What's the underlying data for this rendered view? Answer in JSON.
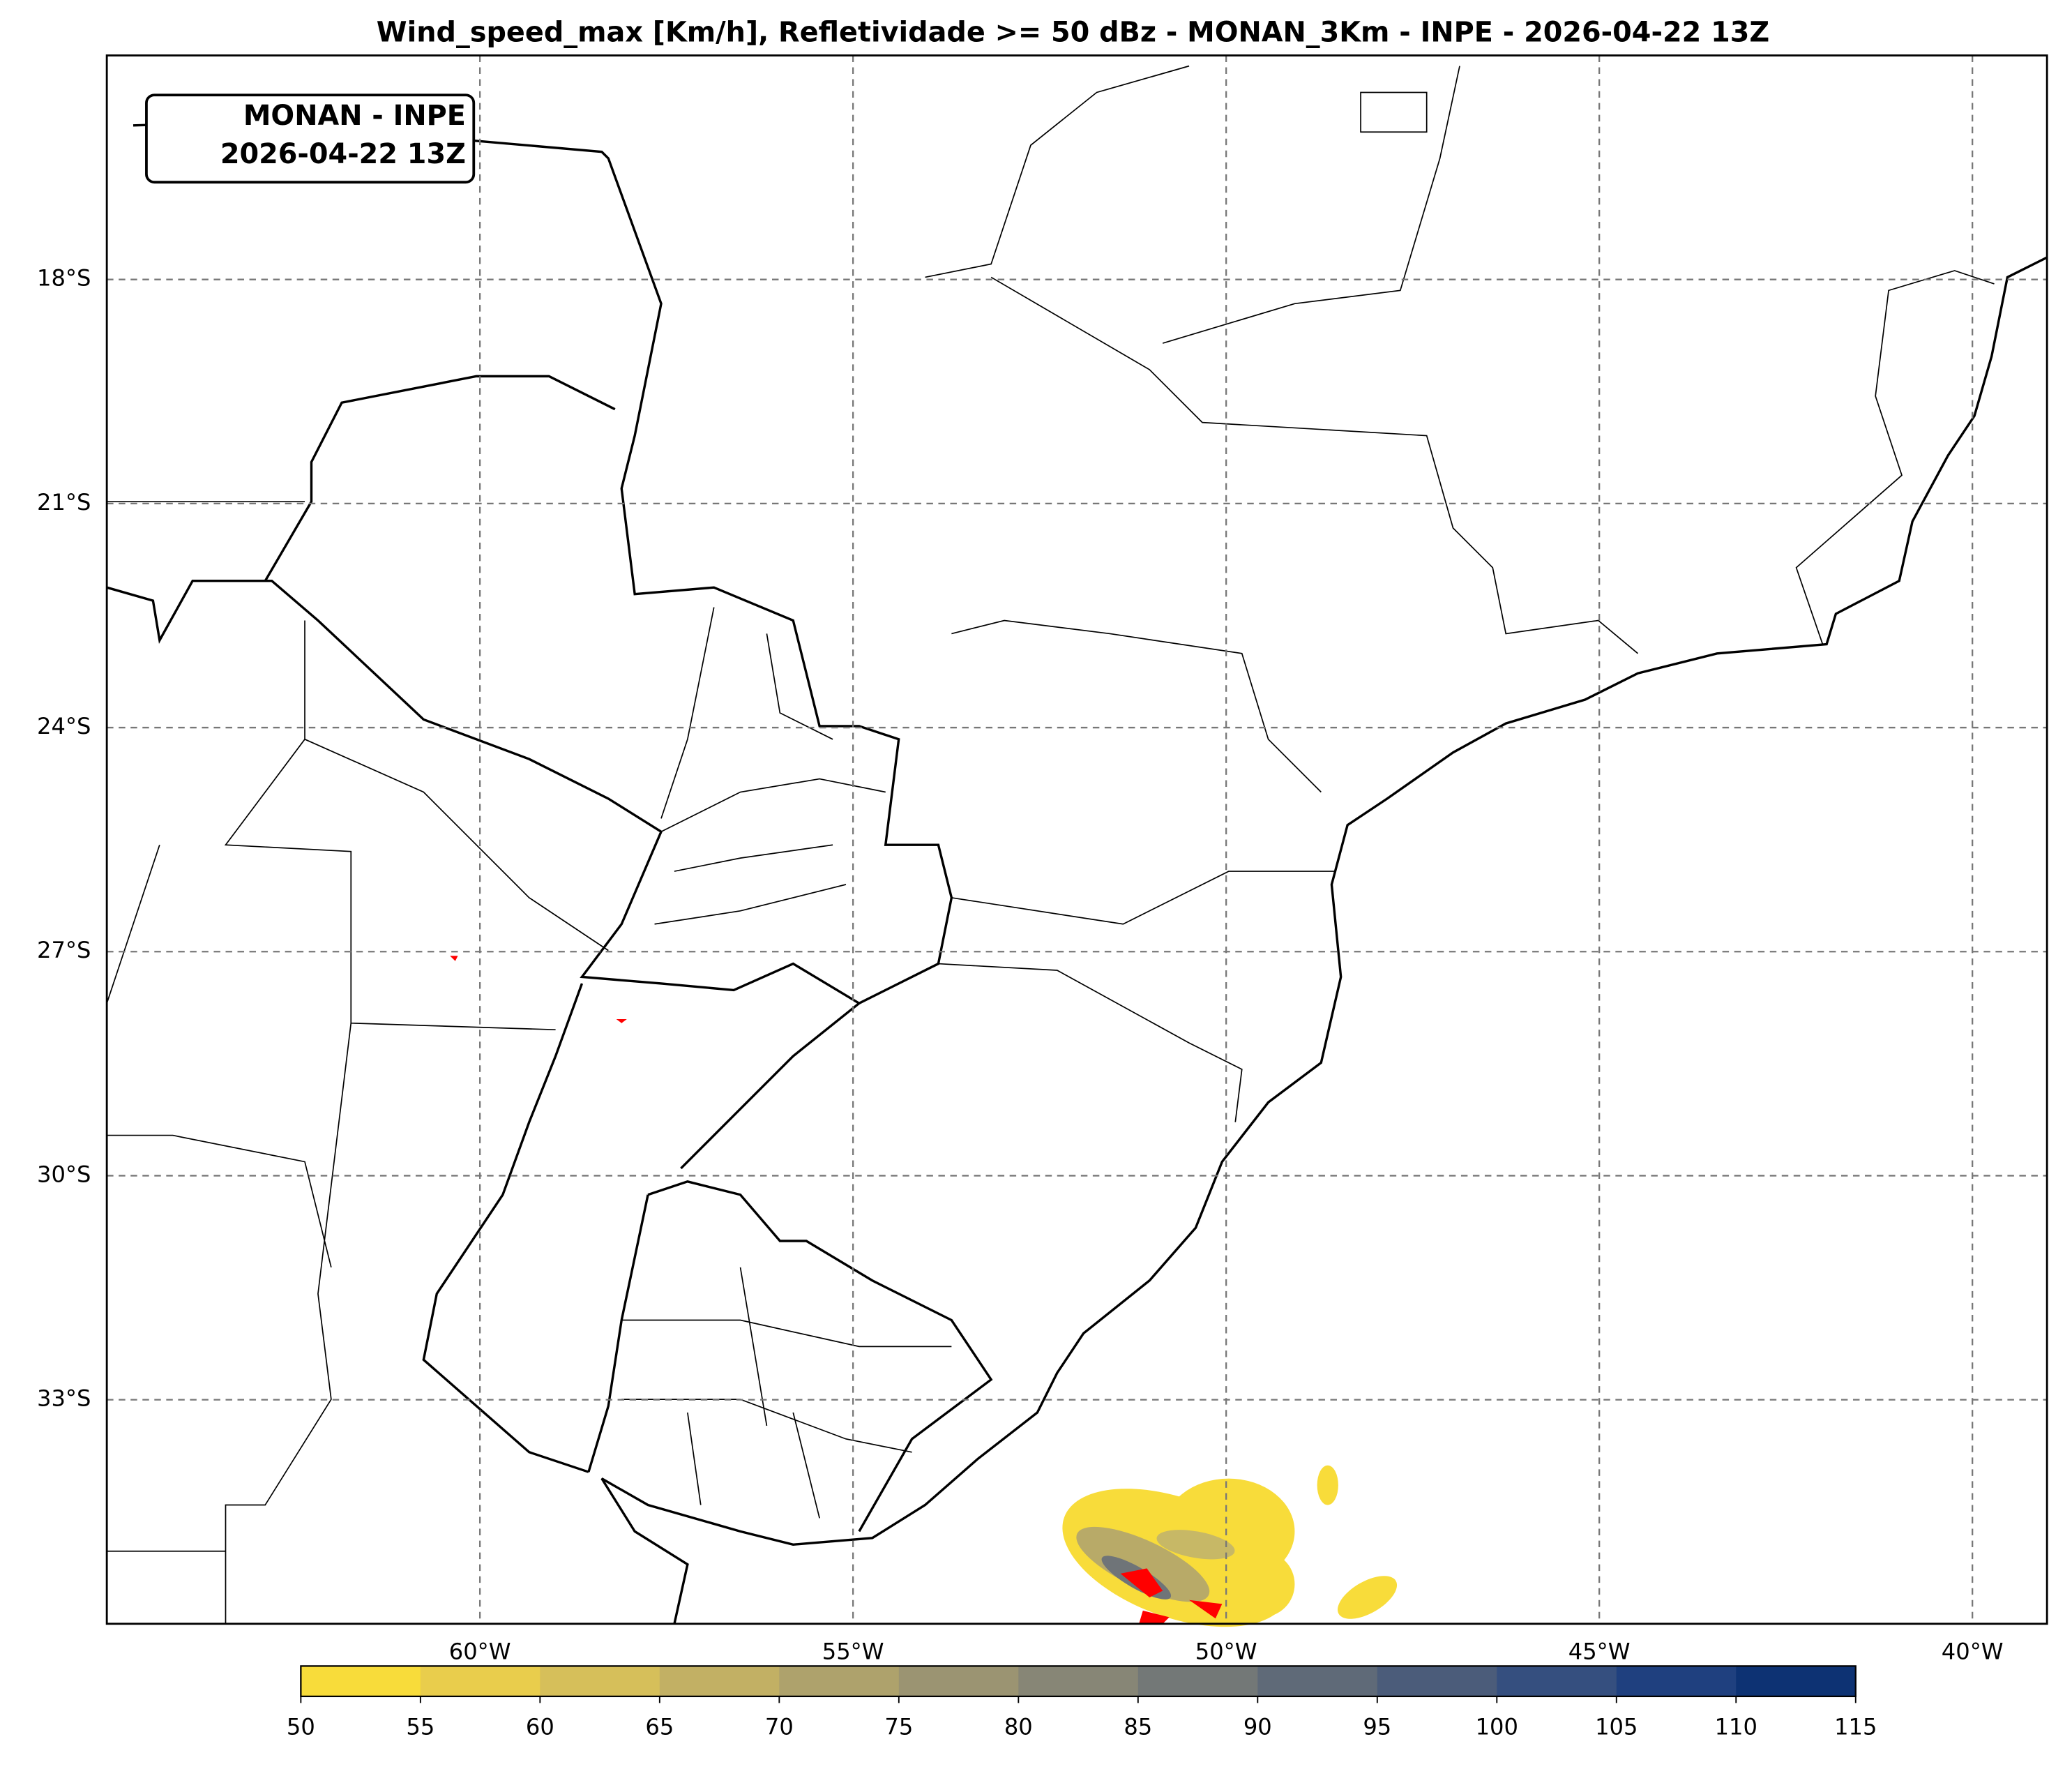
{
  "title": "Wind_speed_max [Km/h], Refletividade >= 50 dBz - MONAN_3Km - INPE - 2026-04-22 13Z",
  "label_box": {
    "lines": [
      "MONAN - INPE",
      "2026-04-22 13Z"
    ]
  },
  "map": {
    "xlim": [
      -65,
      -39
    ],
    "ylim": [
      -36,
      -15
    ],
    "lon_ticks": [
      {
        "value": -60,
        "label": "60°W"
      },
      {
        "value": -55,
        "label": "55°W"
      },
      {
        "value": -50,
        "label": "50°W"
      },
      {
        "value": -45,
        "label": "45°W"
      },
      {
        "value": -40,
        "label": "40°W"
      }
    ],
    "lat_ticks": [
      {
        "value": -18,
        "label": "18°S"
      },
      {
        "value": -21,
        "label": "21°S"
      },
      {
        "value": -24,
        "label": "24°S"
      },
      {
        "value": -27,
        "label": "27°S"
      },
      {
        "value": -30,
        "label": "30°S"
      },
      {
        "value": -33,
        "label": "33°S"
      }
    ],
    "grid": true
  },
  "colorbar": {
    "ticks": [
      50,
      55,
      60,
      65,
      70,
      75,
      80,
      85,
      90,
      95,
      100,
      105,
      110,
      115
    ],
    "colors": [
      "#f8dc3a",
      "#e9cd4c",
      "#d6bf5a",
      "#c2b064",
      "#aea26c",
      "#9b9472",
      "#878676",
      "#737877",
      "#5f6a78",
      "#4b5c7a",
      "#354f7f",
      "#1f407f",
      "#0d3273"
    ]
  }
}
